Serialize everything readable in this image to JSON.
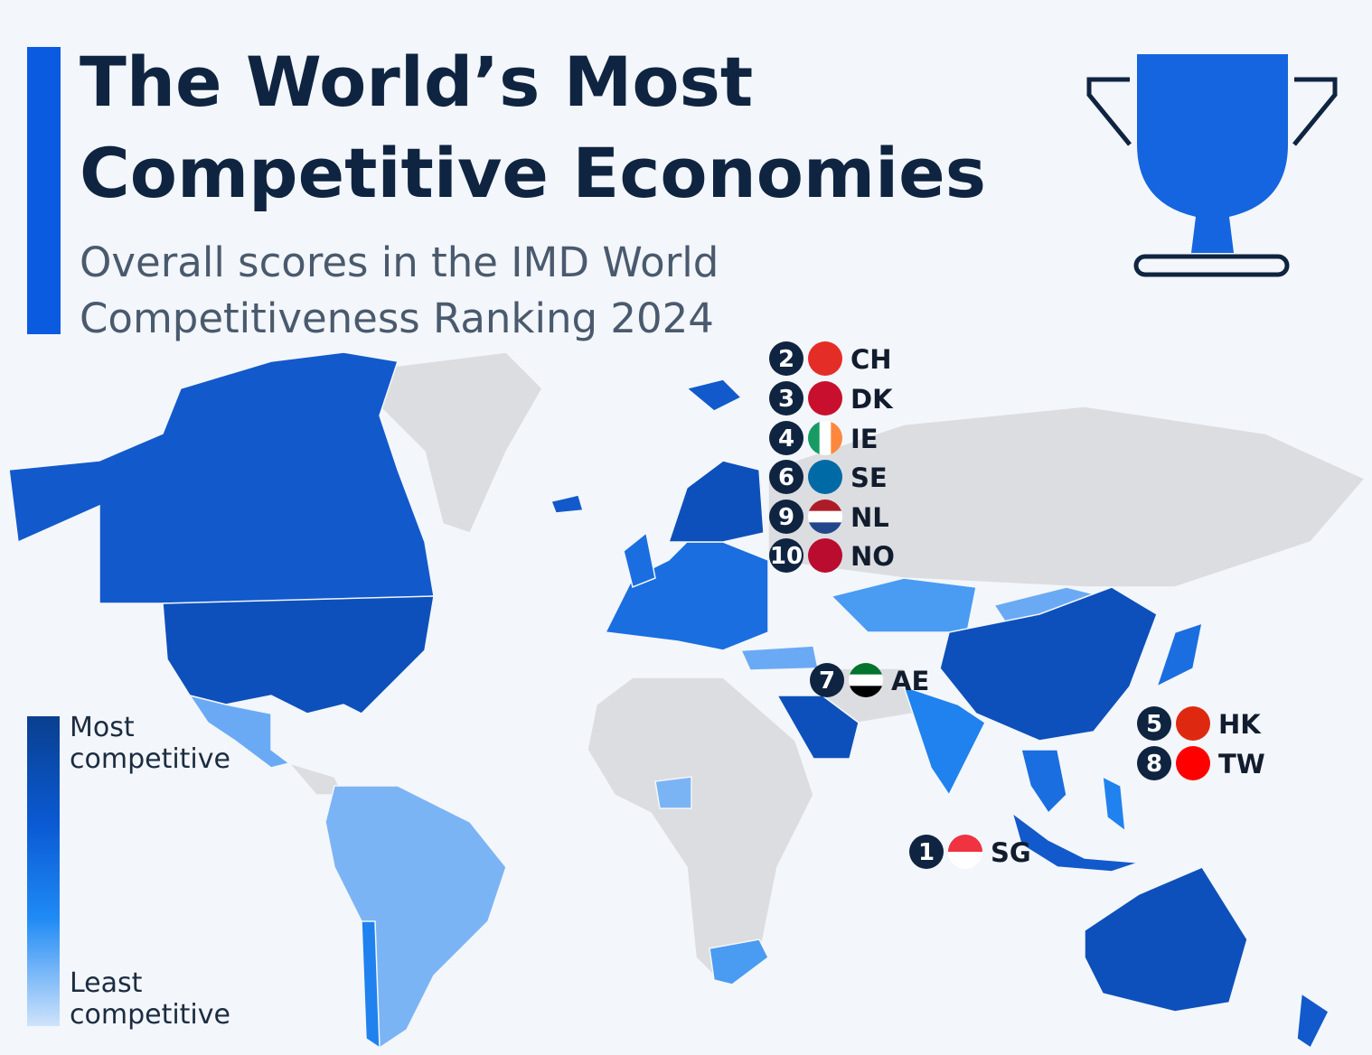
{
  "header": {
    "title": [
      "The World’s Most",
      "Competitive Economies"
    ],
    "subtitle": [
      "Overall scores in the IMD World",
      "Competitiveness Ranking 2024"
    ]
  },
  "legend": {
    "most": [
      "Most",
      "competitive"
    ],
    "least": [
      "Least",
      "competitive"
    ]
  },
  "rankings": [
    {
      "rank": 2,
      "code": "CH"
    },
    {
      "rank": 3,
      "code": "DK"
    },
    {
      "rank": 4,
      "code": "IE"
    },
    {
      "rank": 6,
      "code": "SE"
    },
    {
      "rank": 9,
      "code": "NL"
    },
    {
      "rank": 10,
      "code": "NO"
    },
    {
      "rank": 7,
      "code": "AE"
    },
    {
      "rank": 5,
      "code": "HK"
    },
    {
      "rank": 8,
      "code": "TW"
    },
    {
      "rank": 1,
      "code": "SG"
    }
  ]
}
